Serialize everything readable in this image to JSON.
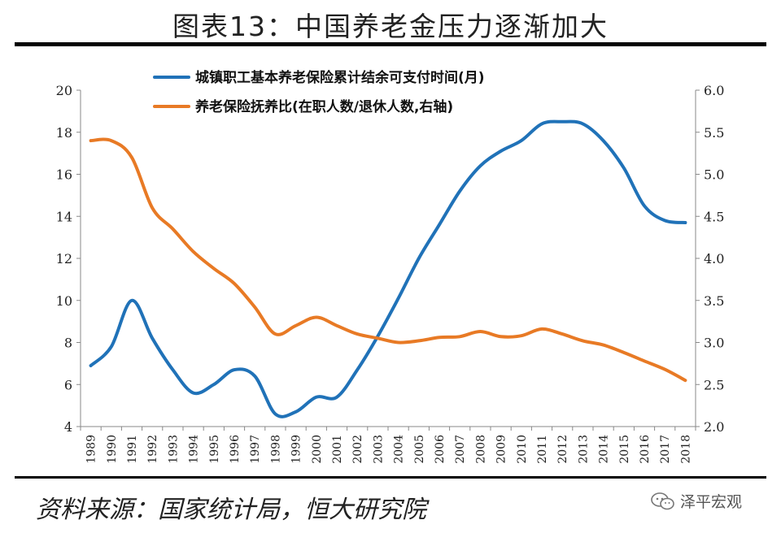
{
  "title": "图表13：中国养老金压力逐渐加大",
  "source": "资料来源：国家统计局，恒大研究院",
  "watermark": "泽平宏观",
  "chart_data": {
    "type": "line",
    "x": [
      1989,
      1990,
      1991,
      1992,
      1993,
      1994,
      1995,
      1996,
      1997,
      1998,
      1999,
      2000,
      2001,
      2002,
      2003,
      2004,
      2005,
      2006,
      2007,
      2008,
      2009,
      2010,
      2011,
      2012,
      2013,
      2014,
      2015,
      2016,
      2017,
      2018
    ],
    "x_labels": [
      "1989",
      "1990",
      "1991",
      "1992",
      "1993",
      "1994",
      "1995",
      "1996",
      "1997",
      "1998",
      "1999",
      "2000",
      "2001",
      "2002",
      "2003",
      "2004",
      "2005",
      "2006",
      "2007",
      "2008",
      "2009",
      "2010",
      "2011",
      "2012",
      "2013",
      "2014",
      "2015",
      "2016",
      "2017",
      "2018"
    ],
    "series": [
      {
        "name": "城镇职工基本养老保险累计结余可支付时间(月)",
        "axis": "left",
        "color": "#2072b8",
        "values": [
          6.9,
          7.8,
          10.0,
          8.2,
          6.7,
          5.6,
          6.0,
          6.7,
          6.4,
          4.6,
          4.7,
          5.4,
          5.4,
          6.7,
          8.3,
          10.1,
          12.0,
          13.6,
          15.2,
          16.4,
          17.1,
          17.6,
          18.4,
          18.5,
          18.4,
          17.6,
          16.3,
          14.5,
          13.8,
          13.7
        ]
      },
      {
        "name": "养老保险抚养比(在职人数/退休人数,右轴)",
        "axis": "right",
        "color": "#e87a25",
        "values": [
          5.4,
          5.4,
          5.2,
          4.6,
          4.35,
          4.08,
          3.88,
          3.7,
          3.42,
          3.1,
          3.2,
          3.3,
          3.2,
          3.1,
          3.05,
          3.0,
          3.02,
          3.06,
          3.07,
          3.13,
          3.07,
          3.08,
          3.16,
          3.1,
          3.02,
          2.97,
          2.88,
          2.78,
          2.68,
          2.55
        ]
      }
    ],
    "left_axis": {
      "ylim": [
        4,
        20
      ],
      "ticks": [
        "4",
        "6",
        "8",
        "10",
        "12",
        "14",
        "16",
        "18",
        "20"
      ]
    },
    "right_axis": {
      "ylim": [
        2.0,
        6.0
      ],
      "ticks": [
        "2.0",
        "2.5",
        "3.0",
        "3.5",
        "4.0",
        "4.5",
        "5.0",
        "5.5",
        "6.0"
      ]
    },
    "legend_position": "top-left"
  }
}
